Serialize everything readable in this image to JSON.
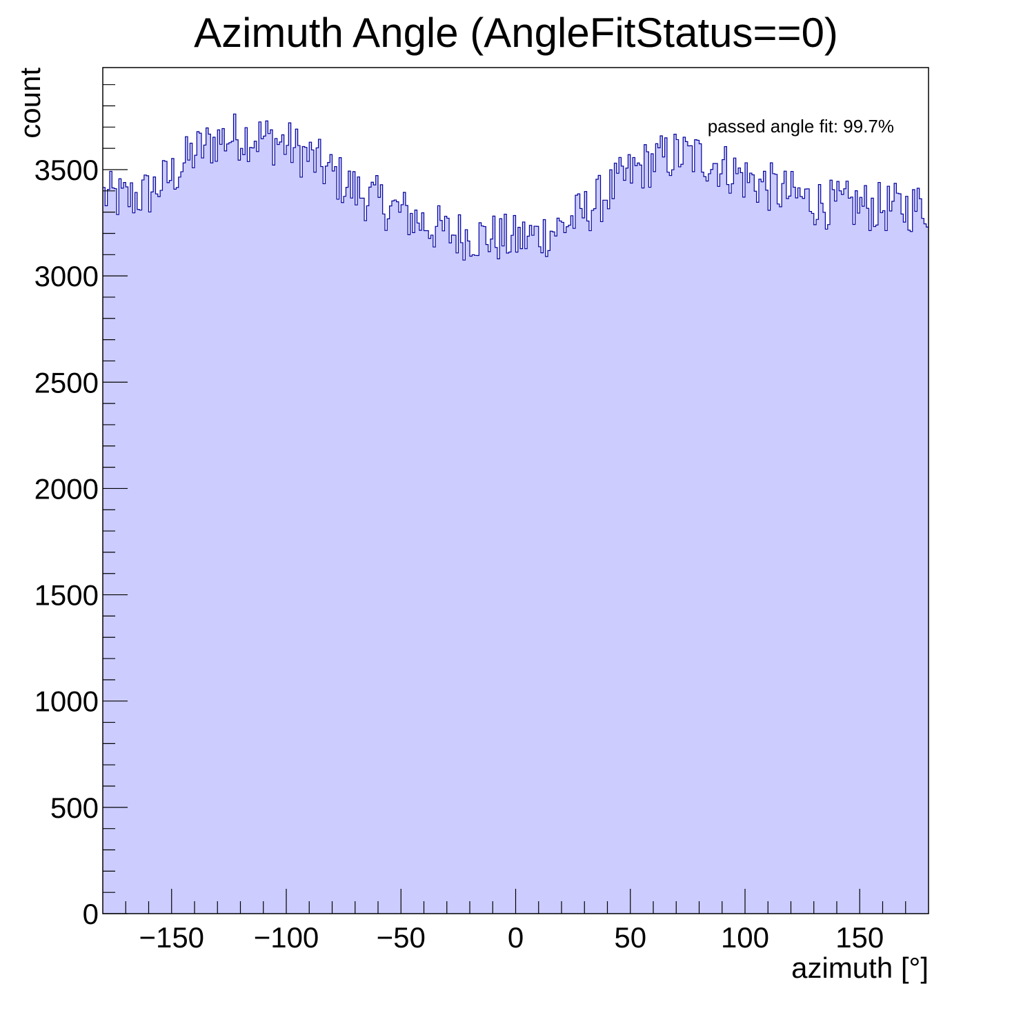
{
  "chart_data": {
    "type": "histogram",
    "title": "Azimuth Angle (AngleFitStatus==0)",
    "xlabel": "azimuth [°]",
    "ylabel": "count",
    "xlim": [
      -180,
      180
    ],
    "ylim": [
      0,
      3980
    ],
    "x_ticks": [
      -150,
      -100,
      -50,
      0,
      50,
      100,
      150
    ],
    "x_tick_labels": [
      "−150",
      "−100",
      "−50",
      "0",
      "50",
      "100",
      "150"
    ],
    "y_ticks": [
      0,
      500,
      1000,
      1500,
      2000,
      2500,
      3000,
      3500
    ],
    "y_tick_labels": [
      "0",
      "500",
      "1000",
      "1500",
      "2000",
      "2500",
      "3000",
      "3500"
    ],
    "annotation": "passed angle fit: 99.7%",
    "grid": false,
    "fill_color": "#ccccff",
    "line_color": "#000099",
    "bin_width": 1,
    "bin_centers_sampled": [
      -180,
      -170,
      -160,
      -150,
      -140,
      -130,
      -120,
      -110,
      -100,
      -90,
      -80,
      -70,
      -60,
      -50,
      -40,
      -30,
      -20,
      -10,
      0,
      10,
      20,
      30,
      40,
      50,
      60,
      70,
      80,
      90,
      100,
      110,
      120,
      130,
      140,
      150,
      160,
      170,
      180
    ],
    "counts_sampled": [
      3380,
      3360,
      3390,
      3470,
      3580,
      3640,
      3660,
      3650,
      3620,
      3560,
      3480,
      3400,
      3350,
      3300,
      3250,
      3200,
      3190,
      3180,
      3170,
      3190,
      3230,
      3300,
      3390,
      3480,
      3540,
      3570,
      3560,
      3520,
      3460,
      3420,
      3380,
      3350,
      3330,
      3330,
      3320,
      3320,
      3330
    ]
  }
}
